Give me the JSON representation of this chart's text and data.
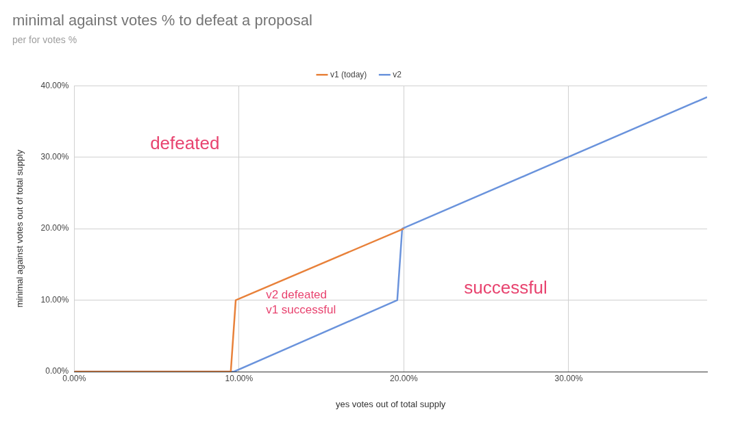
{
  "chart_data": {
    "type": "line",
    "title": "minimal against votes % to defeat a proposal",
    "subtitle": "per for votes %",
    "xlabel": "yes votes out of total supply",
    "ylabel": "minimal against votes out of total supply",
    "series": [
      {
        "name": "v1 (today)",
        "color": "#e8813a",
        "x": [
          0,
          9.5,
          9.8,
          20
        ],
        "values": [
          0,
          0,
          10,
          20
        ]
      },
      {
        "name": "v2",
        "color": "#6a93dc",
        "x": [
          0,
          9.7,
          19.6,
          19.9,
          38.4
        ],
        "values": [
          0,
          0,
          10,
          20,
          38.4
        ]
      }
    ],
    "xlim": [
      0,
      38.4
    ],
    "ylim": [
      0,
      40
    ],
    "xticks": [
      {
        "value": 0,
        "label": "0.00%"
      },
      {
        "value": 10,
        "label": "10.00%"
      },
      {
        "value": 20,
        "label": "20.00%"
      },
      {
        "value": 30,
        "label": "30.00%"
      }
    ],
    "yticks": [
      {
        "value": 0,
        "label": "0.00%"
      },
      {
        "value": 10,
        "label": "10.00%"
      },
      {
        "value": 20,
        "label": "20.00%"
      },
      {
        "value": 30,
        "label": "30.00%"
      },
      {
        "value": 40,
        "label": "40.00%"
      }
    ],
    "annotations": [
      "defeated",
      "v2 defeated\nv1 successful",
      "successful"
    ],
    "grid": true,
    "legend": "top",
    "marker": "none",
    "line_style": "solid"
  }
}
